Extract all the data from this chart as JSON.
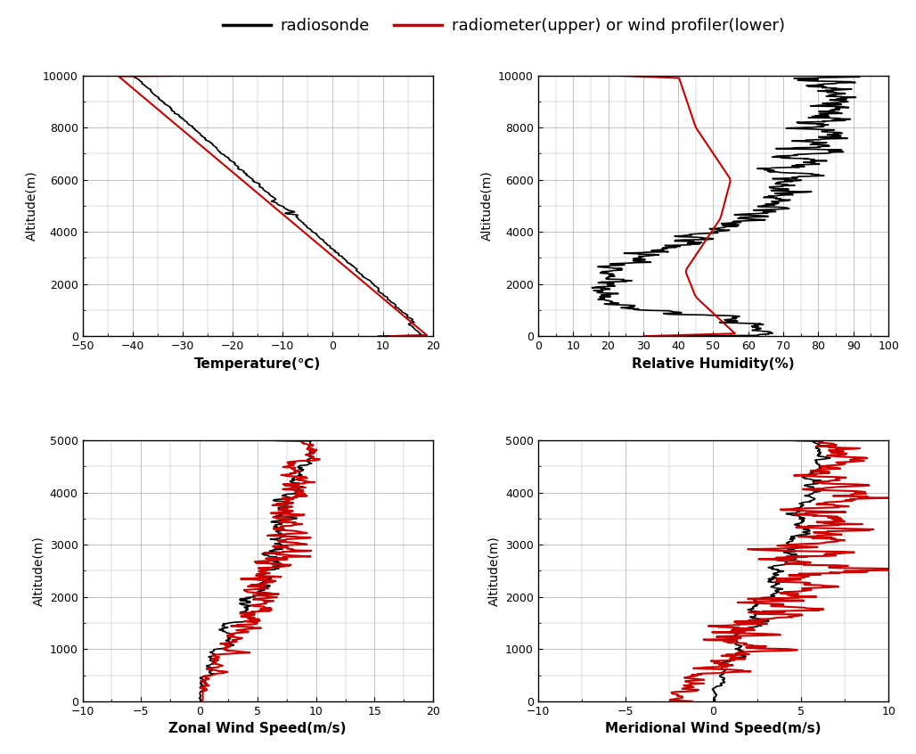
{
  "legend_black": "radiosonde",
  "legend_red": "radiometer(upper) or wind profiler(lower)",
  "subplot_titles": [
    "Temperature(℃)",
    "Relative Humidity(%)",
    "Zonal Wind Speed(m/s)",
    "Meridional Wind Speed(m/s)"
  ],
  "temp": {
    "xlim": [
      -50,
      20
    ],
    "xticks": [
      -50,
      -40,
      -30,
      -20,
      -10,
      0,
      10,
      20
    ],
    "ylim": [
      0,
      10000
    ],
    "yticks": [
      0,
      2000,
      4000,
      6000,
      8000,
      10000
    ]
  },
  "rh": {
    "xlim": [
      0,
      100
    ],
    "xticks": [
      0,
      10,
      20,
      30,
      40,
      50,
      60,
      70,
      80,
      90,
      100
    ],
    "ylim": [
      0,
      10000
    ],
    "yticks": [
      0,
      2000,
      4000,
      6000,
      8000,
      10000
    ]
  },
  "zonal": {
    "xlim": [
      -10,
      20
    ],
    "xticks": [
      -10,
      -5,
      0,
      5,
      10,
      15,
      20
    ],
    "ylim": [
      0,
      5000
    ],
    "yticks": [
      0,
      1000,
      2000,
      3000,
      4000,
      5000
    ]
  },
  "meridional": {
    "xlim": [
      -10,
      10
    ],
    "xticks": [
      -10,
      -5,
      0,
      5,
      10
    ],
    "ylim": [
      0,
      5000
    ],
    "yticks": [
      0,
      1000,
      2000,
      3000,
      4000,
      5000
    ]
  },
  "colors": {
    "black": "#000000",
    "red": "#cc0000",
    "grid": "#aaaaaa",
    "background": "#ffffff"
  }
}
